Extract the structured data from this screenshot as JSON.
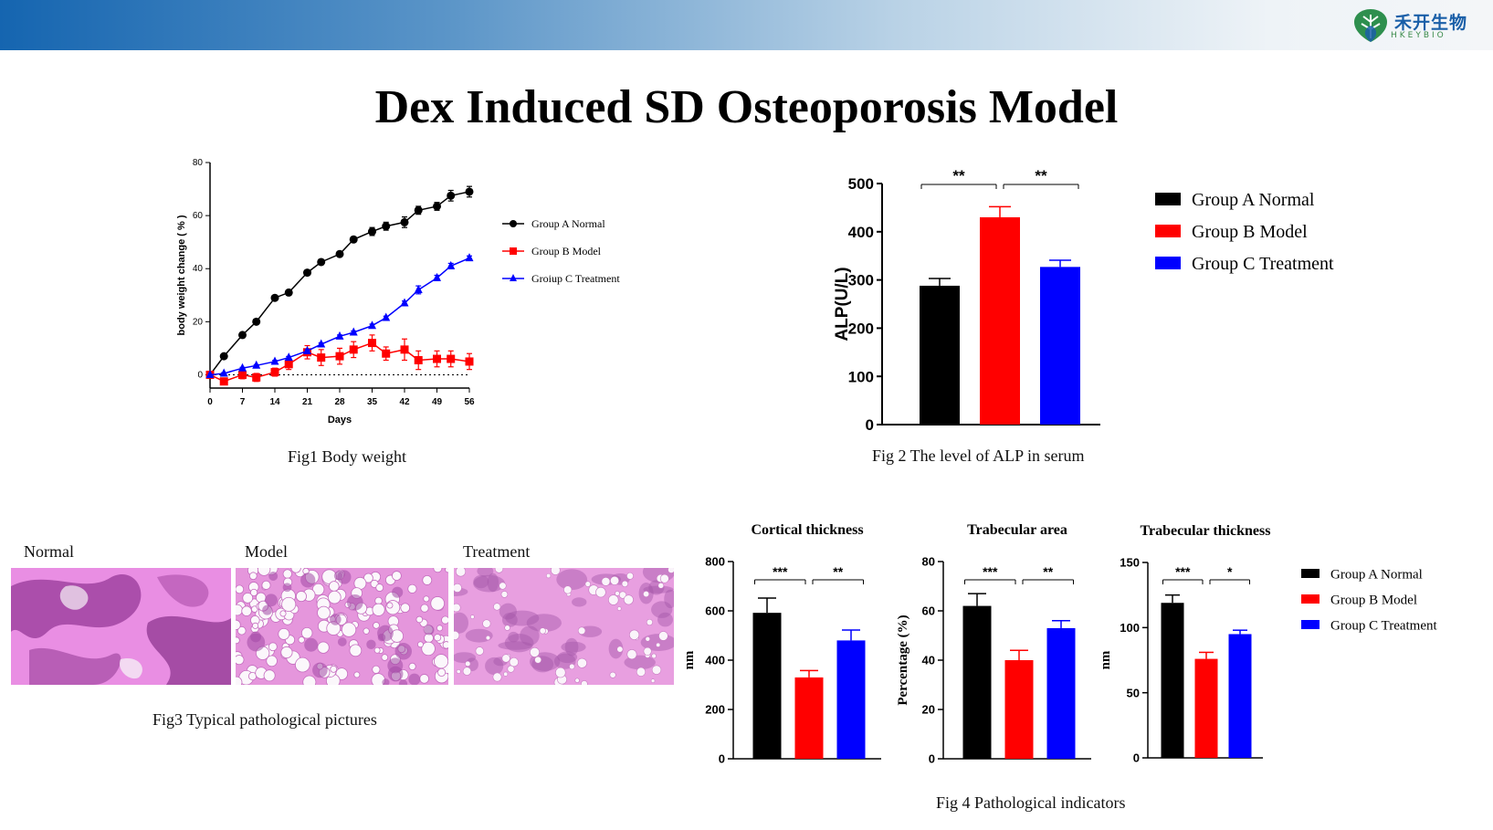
{
  "header": {
    "logo_cn": "禾开生物",
    "logo_en": "HKEYBIO"
  },
  "title": "Dex Induced SD Osteoporosis Model",
  "fig1_caption": "Fig1 Body weight",
  "fig2_caption": "Fig 2 The level of ALP in serum",
  "fig3_caption": "Fig3 Typical pathological pictures",
  "fig4_caption": "Fig 4 Pathological indicators",
  "fig3_labels": [
    "Normal",
    "Model",
    "Treatment"
  ],
  "colors": {
    "groupA": "#000000",
    "groupB": "#ff0000",
    "groupC": "#0000ff"
  },
  "chart_data": [
    {
      "id": "fig1",
      "type": "line",
      "xlabel": "Days",
      "ylabel": "body weight change ( % )",
      "xticks": [
        0,
        7,
        14,
        21,
        28,
        35,
        42,
        49,
        56
      ],
      "yticks": [
        0,
        20,
        40,
        60,
        80
      ],
      "xlim": [
        0,
        56
      ],
      "ylim": [
        -5,
        80
      ],
      "legend": [
        "Group A Normal",
        "Group B Model",
        "Groiup C Treatment"
      ],
      "series": [
        {
          "name": "Group A Normal",
          "marker": "circle",
          "x": [
            0,
            3,
            7,
            10,
            14,
            17,
            21,
            24,
            28,
            31,
            35,
            38,
            42,
            45,
            49,
            52,
            56
          ],
          "y": [
            0,
            7,
            15,
            20,
            29,
            31,
            38.5,
            42.5,
            45.5,
            51,
            54,
            56,
            57.5,
            62,
            63.5,
            67.5,
            69
          ],
          "err": [
            0,
            0.5,
            0.5,
            0.5,
            0.5,
            0.5,
            0.8,
            0.8,
            1,
            1,
            1.5,
            1.5,
            2,
            1.5,
            1.5,
            2,
            2
          ]
        },
        {
          "name": "Group B Model",
          "marker": "square",
          "x": [
            0,
            3,
            7,
            10,
            14,
            17,
            21,
            24,
            28,
            31,
            35,
            38,
            42,
            45,
            49,
            52,
            56
          ],
          "y": [
            0,
            -2.5,
            0,
            -1,
            1,
            4,
            8.5,
            6.5,
            7,
            9.5,
            12,
            8,
            9.5,
            5.5,
            6,
            6,
            5
          ],
          "err": [
            0,
            1,
            1.5,
            1.5,
            1.5,
            2,
            2.5,
            3,
            3,
            3,
            3,
            2.5,
            4,
            3.5,
            3,
            3,
            3
          ]
        },
        {
          "name": "Groiup C Treatment",
          "marker": "triangle",
          "x": [
            0,
            3,
            7,
            10,
            14,
            17,
            21,
            24,
            28,
            31,
            35,
            38,
            42,
            45,
            49,
            52,
            56
          ],
          "y": [
            0,
            0.5,
            2.5,
            3.5,
            5,
            6.5,
            9,
            11.5,
            14.5,
            16,
            18.5,
            21.5,
            27,
            32,
            36.5,
            41,
            44
          ],
          "err": [
            0,
            0.3,
            0.3,
            0.3,
            0.4,
            0.4,
            0.5,
            0.5,
            0.5,
            0.5,
            0.6,
            0.6,
            0.8,
            1.5,
            1,
            1,
            0.8
          ]
        }
      ]
    },
    {
      "id": "fig2",
      "type": "bar",
      "ylabel": "ALP(U/L)",
      "categories": [
        "Group A Normal",
        "Group B Model",
        "Group C Treatment"
      ],
      "values": [
        288,
        430,
        327
      ],
      "errors": [
        15,
        22,
        14
      ],
      "ylim": [
        0,
        500
      ],
      "yticks": [
        0,
        100,
        200,
        300,
        400,
        500
      ],
      "significance": [
        {
          "from": 0,
          "to": 1,
          "label": "**"
        },
        {
          "from": 1,
          "to": 2,
          "label": "**"
        }
      ],
      "legend": [
        "Group A Normal",
        "Group B Model",
        "Group C Treatment"
      ]
    },
    {
      "id": "fig4a",
      "type": "bar",
      "title": "Cortical thickness",
      "ylabel": "nm",
      "categories": [
        "Group A Normal",
        "Group B Model",
        "Group C Treatment"
      ],
      "values": [
        592,
        330,
        480
      ],
      "errors": [
        60,
        28,
        42
      ],
      "ylim": [
        0,
        800
      ],
      "yticks": [
        0,
        200,
        400,
        600,
        800
      ],
      "significance": [
        {
          "from": 0,
          "to": 1,
          "label": "***"
        },
        {
          "from": 1,
          "to": 2,
          "label": "**"
        }
      ]
    },
    {
      "id": "fig4b",
      "type": "bar",
      "title": "Trabecular area",
      "ylabel": "Percentage (%)",
      "categories": [
        "Group A Normal",
        "Group B Model",
        "Group C Treatment"
      ],
      "values": [
        62,
        40,
        53
      ],
      "errors": [
        5,
        4,
        3
      ],
      "ylim": [
        0,
        80
      ],
      "yticks": [
        0,
        20,
        40,
        60,
        80
      ],
      "significance": [
        {
          "from": 0,
          "to": 1,
          "label": "***"
        },
        {
          "from": 1,
          "to": 2,
          "label": "**"
        }
      ]
    },
    {
      "id": "fig4c",
      "type": "bar",
      "title": "Trabecular thickness",
      "ylabel": "nm",
      "categories": [
        "Group A Normal",
        "Group B Model",
        "Group C Treatment"
      ],
      "values": [
        119,
        76,
        95
      ],
      "errors": [
        6,
        5,
        3
      ],
      "ylim": [
        0,
        150
      ],
      "yticks": [
        0,
        50,
        100,
        150
      ],
      "significance": [
        {
          "from": 0,
          "to": 1,
          "label": "***"
        },
        {
          "from": 1,
          "to": 2,
          "label": "*"
        }
      ],
      "legend": [
        "Group A Normal",
        "Group B Model",
        "Group C Treatment"
      ]
    }
  ]
}
